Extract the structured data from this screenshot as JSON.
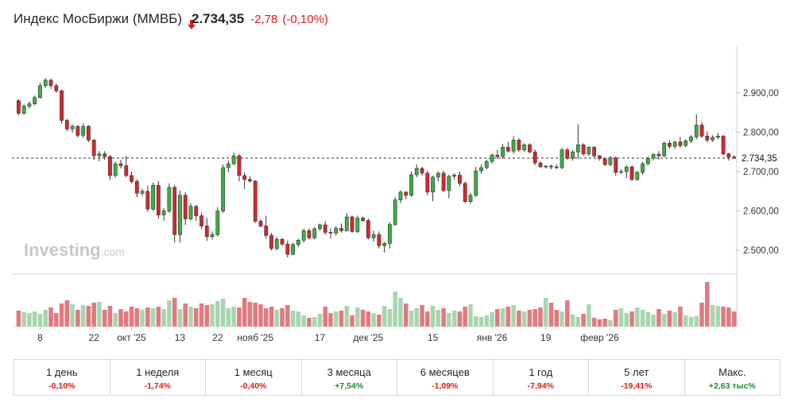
{
  "header": {
    "title": "Индекс МосБиржи (MMBБ)",
    "price": "2.734,35",
    "change": "-2,78",
    "change_pct": "(-0,10%)",
    "direction": "down",
    "down_color": "#d91e18",
    "up_color": "#1e8a34"
  },
  "watermark": {
    "brand": "Investing",
    "suffix": ".com"
  },
  "chart_data": {
    "type": "candlestick",
    "title": "Индекс МосБиржи (MMBБ)",
    "ylim": [
      2440,
      2960
    ],
    "y_ticks": [
      2500,
      2600,
      2700,
      2800,
      2900
    ],
    "y_tick_labels": [
      "2.500,00",
      "2.600,00",
      "2.700,00",
      "2.800,00",
      "2.900,00"
    ],
    "last_value": 2734.35,
    "last_value_label": "2.734,35",
    "x_tick_labels": [
      {
        "label": "8",
        "index": 4
      },
      {
        "label": "22",
        "index": 14
      },
      {
        "label": "окт '25",
        "index": 21
      },
      {
        "label": "13",
        "index": 30
      },
      {
        "label": "22",
        "index": 37
      },
      {
        "label": "нояб '25",
        "index": 44
      },
      {
        "label": "17",
        "index": 56
      },
      {
        "label": "дек '25",
        "index": 65
      },
      {
        "label": "15",
        "index": 77
      },
      {
        "label": "янв '26",
        "index": 88
      },
      {
        "label": "19",
        "index": 98
      },
      {
        "label": "февр '26",
        "index": 108
      }
    ],
    "up_color": "#3cb043",
    "down_color": "#d9262b",
    "candles": [
      [
        2880,
        2884,
        2843,
        2848
      ],
      [
        2848,
        2870,
        2845,
        2866
      ],
      [
        2866,
        2878,
        2860,
        2872
      ],
      [
        2872,
        2893,
        2868,
        2888
      ],
      [
        2888,
        2925,
        2885,
        2918
      ],
      [
        2918,
        2937,
        2912,
        2932
      ],
      [
        2932,
        2936,
        2910,
        2918
      ],
      [
        2918,
        2924,
        2900,
        2905
      ],
      [
        2905,
        2908,
        2822,
        2830
      ],
      [
        2830,
        2834,
        2802,
        2808
      ],
      [
        2808,
        2820,
        2798,
        2815
      ],
      [
        2815,
        2818,
        2786,
        2792
      ],
      [
        2792,
        2822,
        2785,
        2815
      ],
      [
        2815,
        2818,
        2775,
        2780
      ],
      [
        2780,
        2782,
        2730,
        2740
      ],
      [
        2740,
        2752,
        2726,
        2745
      ],
      [
        2745,
        2752,
        2730,
        2738
      ],
      [
        2738,
        2742,
        2678,
        2690
      ],
      [
        2690,
        2725,
        2685,
        2720
      ],
      [
        2720,
        2730,
        2708,
        2715
      ],
      [
        2715,
        2740,
        2685,
        2690
      ],
      [
        2690,
        2700,
        2670,
        2675
      ],
      [
        2675,
        2680,
        2635,
        2645
      ],
      [
        2645,
        2656,
        2638,
        2650
      ],
      [
        2650,
        2665,
        2598,
        2605
      ],
      [
        2605,
        2672,
        2600,
        2665
      ],
      [
        2665,
        2676,
        2580,
        2590
      ],
      [
        2590,
        2608,
        2575,
        2600
      ],
      [
        2600,
        2670,
        2595,
        2660
      ],
      [
        2660,
        2667,
        2520,
        2540
      ],
      [
        2540,
        2652,
        2520,
        2640
      ],
      [
        2640,
        2648,
        2565,
        2580
      ],
      [
        2580,
        2620,
        2576,
        2612
      ],
      [
        2612,
        2615,
        2575,
        2588
      ],
      [
        2588,
        2596,
        2555,
        2562
      ],
      [
        2562,
        2582,
        2524,
        2535
      ],
      [
        2535,
        2548,
        2528,
        2540
      ],
      [
        2540,
        2610,
        2536,
        2600
      ],
      [
        2600,
        2718,
        2595,
        2710
      ],
      [
        2710,
        2728,
        2698,
        2720
      ],
      [
        2720,
        2748,
        2716,
        2740
      ],
      [
        2740,
        2745,
        2675,
        2690
      ],
      [
        2690,
        2698,
        2656,
        2680
      ],
      [
        2680,
        2688,
        2672,
        2676
      ],
      [
        2676,
        2678,
        2570,
        2574
      ],
      [
        2574,
        2580,
        2558,
        2562
      ],
      [
        2562,
        2588,
        2530,
        2538
      ],
      [
        2538,
        2544,
        2500,
        2505
      ],
      [
        2505,
        2535,
        2500,
        2528
      ],
      [
        2528,
        2532,
        2512,
        2516
      ],
      [
        2516,
        2525,
        2482,
        2490
      ],
      [
        2490,
        2520,
        2488,
        2515
      ],
      [
        2515,
        2530,
        2508,
        2526
      ],
      [
        2526,
        2555,
        2520,
        2550
      ],
      [
        2550,
        2556,
        2528,
        2532
      ],
      [
        2532,
        2560,
        2528,
        2555
      ],
      [
        2555,
        2568,
        2550,
        2565
      ],
      [
        2565,
        2574,
        2540,
        2546
      ],
      [
        2546,
        2556,
        2530,
        2544
      ],
      [
        2544,
        2562,
        2538,
        2556
      ],
      [
        2556,
        2568,
        2545,
        2550
      ],
      [
        2550,
        2595,
        2548,
        2585
      ],
      [
        2585,
        2588,
        2545,
        2548
      ],
      [
        2548,
        2588,
        2544,
        2582
      ],
      [
        2582,
        2586,
        2572,
        2576
      ],
      [
        2576,
        2581,
        2528,
        2532
      ],
      [
        2532,
        2550,
        2522,
        2540
      ],
      [
        2540,
        2548,
        2505,
        2512
      ],
      [
        2512,
        2522,
        2495,
        2518
      ],
      [
        2518,
        2572,
        2505,
        2566
      ],
      [
        2566,
        2635,
        2562,
        2628
      ],
      [
        2628,
        2652,
        2620,
        2648
      ],
      [
        2648,
        2650,
        2630,
        2640
      ],
      [
        2640,
        2700,
        2636,
        2692
      ],
      [
        2692,
        2718,
        2686,
        2708
      ],
      [
        2708,
        2712,
        2690,
        2696
      ],
      [
        2696,
        2702,
        2640,
        2648
      ],
      [
        2648,
        2690,
        2625,
        2686
      ],
      [
        2686,
        2700,
        2675,
        2696
      ],
      [
        2696,
        2702,
        2648,
        2652
      ],
      [
        2652,
        2692,
        2632,
        2688
      ],
      [
        2688,
        2696,
        2680,
        2691
      ],
      [
        2691,
        2700,
        2663,
        2670
      ],
      [
        2670,
        2675,
        2620,
        2624
      ],
      [
        2624,
        2646,
        2618,
        2640
      ],
      [
        2640,
        2712,
        2635,
        2702
      ],
      [
        2702,
        2718,
        2695,
        2710
      ],
      [
        2710,
        2730,
        2706,
        2726
      ],
      [
        2726,
        2746,
        2720,
        2742
      ],
      [
        2742,
        2755,
        2732,
        2738
      ],
      [
        2738,
        2770,
        2733,
        2762
      ],
      [
        2762,
        2775,
        2748,
        2752
      ],
      [
        2752,
        2790,
        2745,
        2780
      ],
      [
        2780,
        2785,
        2750,
        2755
      ],
      [
        2755,
        2772,
        2750,
        2768
      ],
      [
        2768,
        2772,
        2746,
        2750
      ],
      [
        2750,
        2756,
        2716,
        2722
      ],
      [
        2722,
        2726,
        2710,
        2712
      ],
      [
        2712,
        2716,
        2708,
        2714
      ],
      [
        2714,
        2718,
        2706,
        2712
      ],
      [
        2712,
        2718,
        2706,
        2710
      ],
      [
        2710,
        2760,
        2706,
        2755
      ],
      [
        2755,
        2760,
        2730,
        2734
      ],
      [
        2734,
        2755,
        2728,
        2750
      ],
      [
        2750,
        2820,
        2733,
        2768
      ],
      [
        2768,
        2772,
        2740,
        2745
      ],
      [
        2745,
        2764,
        2740,
        2762
      ],
      [
        2762,
        2764,
        2735,
        2740
      ],
      [
        2740,
        2742,
        2728,
        2733
      ],
      [
        2733,
        2735,
        2714,
        2718
      ],
      [
        2718,
        2740,
        2714,
        2735
      ],
      [
        2735,
        2738,
        2690,
        2698
      ],
      [
        2698,
        2706,
        2694,
        2700
      ],
      [
        2700,
        2716,
        2684,
        2712
      ],
      [
        2712,
        2715,
        2676,
        2680
      ],
      [
        2680,
        2702,
        2676,
        2698
      ],
      [
        2698,
        2725,
        2692,
        2720
      ],
      [
        2720,
        2738,
        2716,
        2734
      ],
      [
        2734,
        2746,
        2728,
        2744
      ],
      [
        2744,
        2752,
        2730,
        2740
      ],
      [
        2740,
        2776,
        2736,
        2772
      ],
      [
        2772,
        2780,
        2758,
        2764
      ],
      [
        2764,
        2778,
        2758,
        2775
      ],
      [
        2775,
        2788,
        2760,
        2766
      ],
      [
        2766,
        2782,
        2762,
        2778
      ],
      [
        2778,
        2792,
        2772,
        2788
      ],
      [
        2788,
        2845,
        2782,
        2818
      ],
      [
        2818,
        2826,
        2785,
        2790
      ],
      [
        2790,
        2802,
        2774,
        2780
      ],
      [
        2780,
        2792,
        2776,
        2787
      ],
      [
        2787,
        2798,
        2782,
        2790
      ],
      [
        2790,
        2793,
        2740,
        2745
      ],
      [
        2745,
        2748,
        2728,
        2737
      ],
      [
        2737,
        2742,
        2732,
        2734
      ]
    ],
    "volume_ylim": [
      0,
      60
    ],
    "volumes": [
      20,
      18,
      17,
      19,
      16,
      21,
      24,
      17,
      29,
      33,
      28,
      21,
      27,
      26,
      30,
      31,
      21,
      26,
      17,
      22,
      19,
      25,
      23,
      21,
      24,
      23,
      25,
      22,
      33,
      36,
      22,
      29,
      25,
      23,
      29,
      27,
      28,
      32,
      35,
      23,
      25,
      24,
      36,
      31,
      30,
      28,
      23,
      25,
      21,
      23,
      27,
      20,
      19,
      14,
      11,
      12,
      16,
      25,
      17,
      19,
      20,
      26,
      14,
      24,
      21,
      19,
      17,
      15,
      26,
      22,
      44,
      36,
      29,
      20,
      23,
      27,
      19,
      26,
      21,
      23,
      17,
      20,
      19,
      25,
      28,
      13,
      12,
      14,
      18,
      22,
      23,
      25,
      27,
      20,
      19,
      21,
      22,
      24,
      36,
      30,
      21,
      19,
      33,
      15,
      12,
      16,
      28,
      11,
      9,
      10,
      8,
      21,
      23,
      17,
      19,
      24,
      21,
      18,
      15,
      22,
      16,
      20,
      18,
      25,
      14,
      12,
      13,
      30,
      56,
      27,
      26,
      25,
      24,
      19
    ]
  },
  "periods": [
    {
      "label": "1 день",
      "value": "-0,10%",
      "trend": "neg"
    },
    {
      "label": "1 неделя",
      "value": "-1,74%",
      "trend": "neg"
    },
    {
      "label": "1 месяц",
      "value": "-0,40%",
      "trend": "neg"
    },
    {
      "label": "3 месяца",
      "value": "+7,54%",
      "trend": "pos"
    },
    {
      "label": "6 месяцев",
      "value": "-1,09%",
      "trend": "neg"
    },
    {
      "label": "1 год",
      "value": "-7,94%",
      "trend": "neg"
    },
    {
      "label": "5 лет",
      "value": "-19,41%",
      "trend": "neg"
    },
    {
      "label": "Макс.",
      "value": "+2,63 тыс%",
      "trend": "pos"
    }
  ]
}
